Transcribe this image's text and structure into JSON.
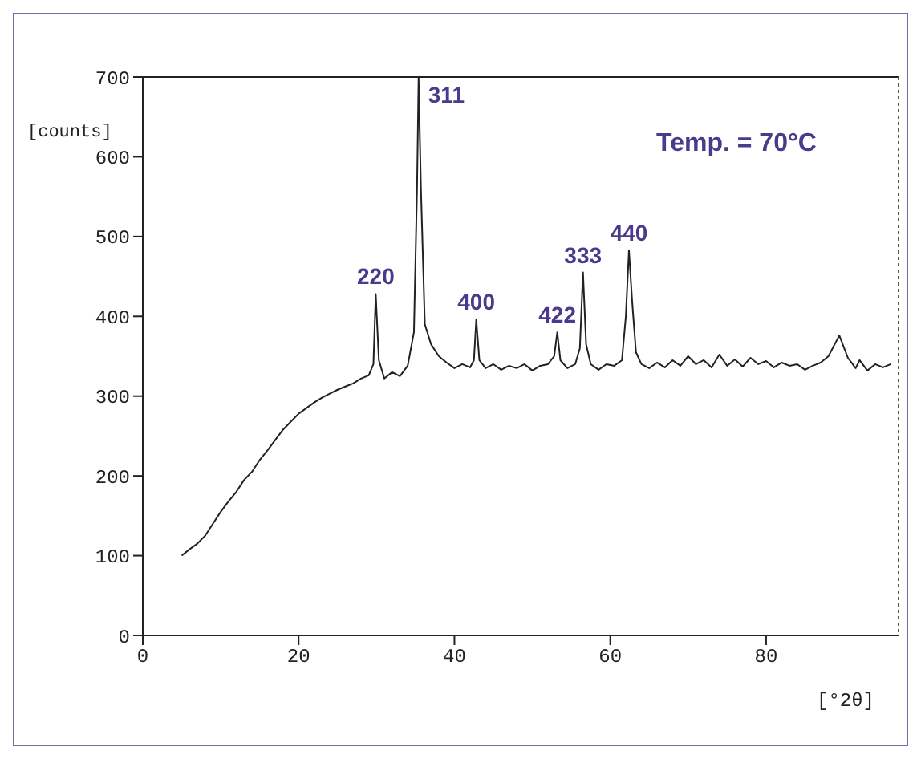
{
  "chart_data": {
    "type": "line",
    "xlabel": "[°2θ]",
    "ylabel": "[counts]",
    "x": [
      5,
      6,
      7,
      8,
      9,
      10,
      11,
      12,
      13,
      14,
      15,
      16,
      17,
      18,
      19,
      20,
      21,
      22,
      23,
      24,
      25,
      26,
      27,
      28,
      29,
      29.6,
      29.9,
      30.3,
      31,
      32,
      33,
      34,
      34.8,
      35.2,
      35.4,
      35.7,
      36.2,
      37,
      38,
      39,
      40,
      41,
      42,
      42.5,
      42.8,
      43.2,
      44,
      45,
      46,
      47,
      48,
      49,
      50,
      51,
      52,
      52.8,
      53.2,
      53.6,
      54.5,
      55.5,
      56.1,
      56.5,
      56.9,
      57.5,
      58.5,
      59.5,
      60.5,
      61.5,
      62,
      62.4,
      62.8,
      63.3,
      64,
      65,
      66,
      67,
      68,
      69,
      70,
      71,
      72,
      73,
      74,
      75,
      76,
      77,
      78,
      79,
      80,
      81,
      82,
      83,
      84,
      85,
      86,
      87,
      88,
      89.4,
      90.5,
      91.5,
      92,
      93,
      94,
      95,
      96
    ],
    "series": [
      {
        "color": "#222222",
        "values": [
          100,
          108,
          115,
          125,
          140,
          155,
          168,
          180,
          195,
          205,
          220,
          232,
          245,
          258,
          268,
          278,
          285,
          292,
          298,
          303,
          308,
          312,
          316,
          322,
          326,
          340,
          428,
          345,
          322,
          330,
          325,
          338,
          380,
          560,
          700,
          560,
          390,
          365,
          350,
          342,
          335,
          340,
          336,
          345,
          396,
          345,
          335,
          340,
          333,
          338,
          335,
          340,
          332,
          338,
          340,
          350,
          380,
          345,
          335,
          340,
          360,
          455,
          365,
          340,
          333,
          340,
          338,
          345,
          400,
          483,
          420,
          355,
          340,
          335,
          342,
          336,
          345,
          338,
          350,
          340,
          345,
          336,
          352,
          338,
          346,
          337,
          348,
          340,
          344,
          336,
          342,
          338,
          340,
          333,
          338,
          342,
          350,
          376,
          348,
          335,
          345,
          332,
          340,
          336,
          340
        ]
      }
    ],
    "xlim": [
      0,
      97
    ],
    "xticks": [
      0,
      20,
      40,
      60,
      80
    ],
    "ylim": [
      0,
      700
    ],
    "yticks": [
      0,
      100,
      200,
      300,
      400,
      500,
      600,
      700
    ],
    "grid": false,
    "legend": false,
    "marker": "none",
    "line_style": "solid",
    "annotations": [
      {
        "text": "220",
        "x": 29.9,
        "y": 428
      },
      {
        "text": "311",
        "x": 35.4,
        "y": 700
      },
      {
        "text": "400",
        "x": 42.8,
        "y": 396
      },
      {
        "text": "422",
        "x": 53.2,
        "y": 380
      },
      {
        "text": "333",
        "x": 56.5,
        "y": 455
      },
      {
        "text": "440",
        "x": 62.4,
        "y": 483
      },
      "Temp. = 70°C"
    ]
  }
}
